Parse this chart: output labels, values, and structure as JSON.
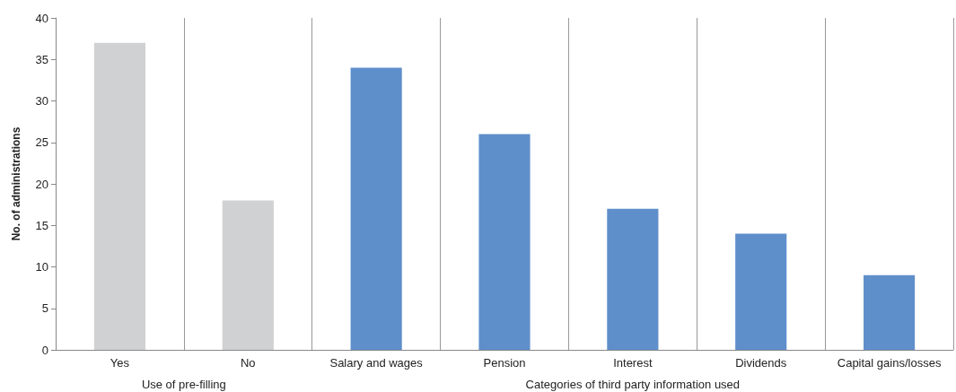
{
  "chart_data": {
    "type": "bar",
    "ylabel": "No. of administrations",
    "categories": [
      "Yes",
      "No",
      "Salary and wages",
      "Pension",
      "Interest",
      "Dividends",
      "Capital gains/losses"
    ],
    "values": [
      37,
      18,
      34,
      26,
      17,
      14,
      9
    ],
    "colors": [
      "#d0d1d3",
      "#d0d1d3",
      "#5f8fcb",
      "#5f8fcb",
      "#5f8fcb",
      "#5f8fcb",
      "#5f8fcb"
    ],
    "ylim": [
      0,
      40
    ],
    "yticks": [
      0,
      5,
      10,
      15,
      20,
      25,
      30,
      35,
      40
    ],
    "grid": "x",
    "annotations": [
      "Use of pre-filling",
      "Categories of third party information used"
    ]
  }
}
